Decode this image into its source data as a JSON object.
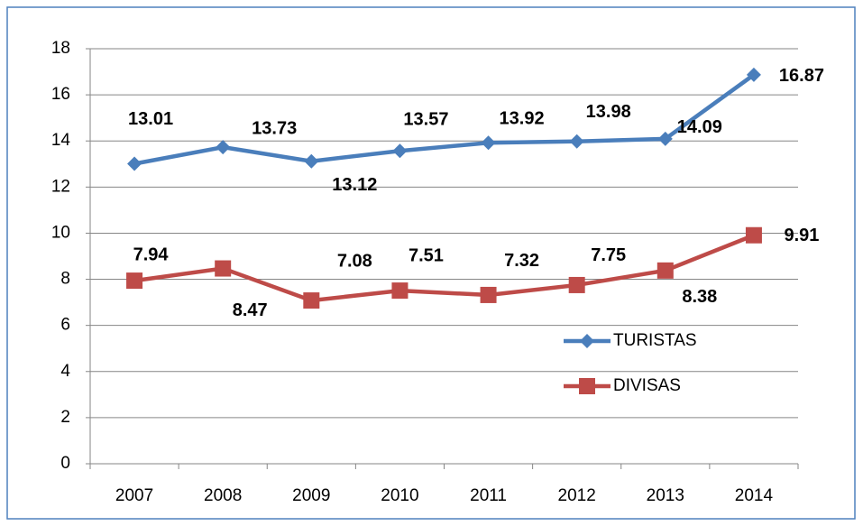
{
  "chart_data": {
    "type": "line",
    "categories": [
      "2007",
      "2008",
      "2009",
      "2010",
      "2011",
      "2012",
      "2013",
      "2014"
    ],
    "series": [
      {
        "name": "TURISTAS",
        "color": "#4a7ebb",
        "marker": "diamond",
        "values": [
          13.01,
          13.73,
          13.12,
          13.57,
          13.92,
          13.98,
          14.09,
          16.87
        ]
      },
      {
        "name": "DIVISAS",
        "color": "#be4b48",
        "marker": "square",
        "values": [
          7.94,
          8.47,
          7.08,
          7.51,
          7.32,
          7.75,
          8.38,
          9.91
        ]
      }
    ],
    "ylim": [
      0,
      18
    ],
    "yticks": [
      0,
      2,
      4,
      6,
      8,
      10,
      12,
      14,
      16,
      18
    ],
    "grid": true,
    "legend": "right"
  }
}
